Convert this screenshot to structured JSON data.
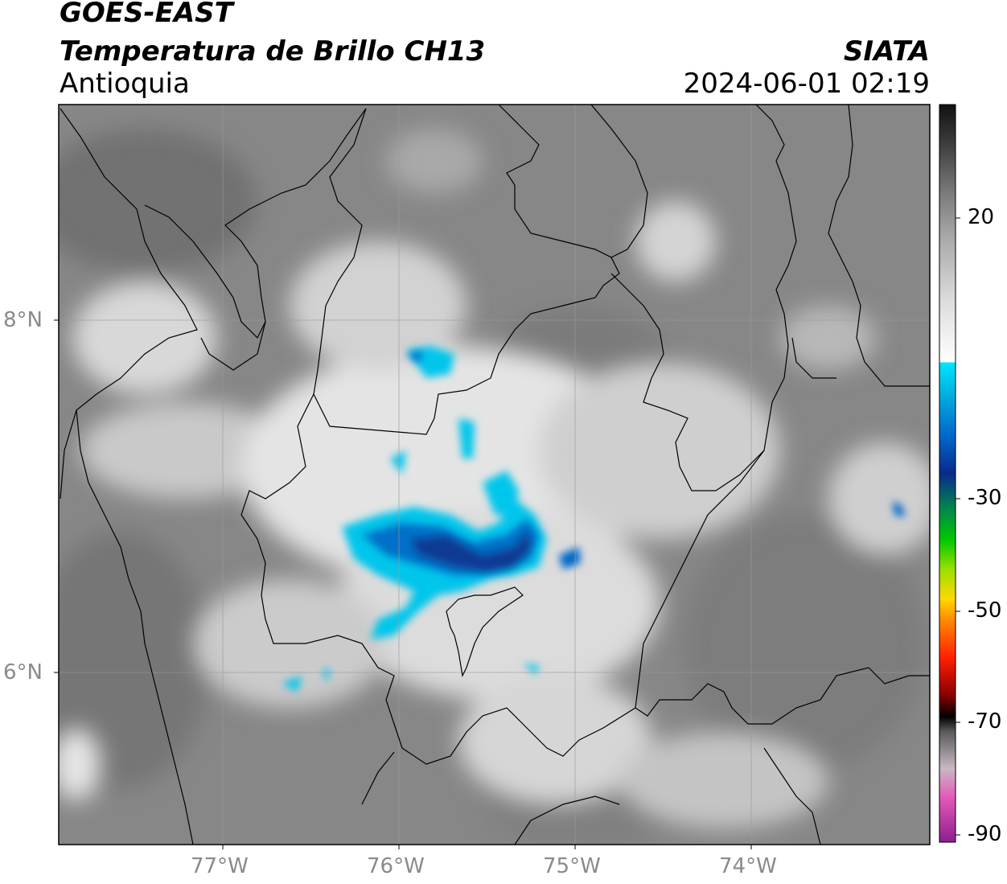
{
  "header": {
    "satellite": "GOES-EAST",
    "product": "Temperatura de Brillo CH13",
    "region": "Antioquia",
    "brand": "SIATA",
    "timestamp": "2024-06-01 02:19"
  },
  "map": {
    "lat_labels": [
      "8°N",
      "6°N"
    ],
    "lon_labels": [
      "77°W",
      "76°W",
      "75°W",
      "74°W"
    ],
    "grid": true,
    "background_color": "#8a8a8a",
    "border_color": "#000000"
  },
  "colorbar": {
    "tick_labels": [
      "20",
      "-30",
      "-50",
      "-70",
      "-90"
    ],
    "units_hint": "°C",
    "stops": [
      {
        "color": "#8c1f8c"
      },
      {
        "color": "#e458b8"
      },
      {
        "color": "#c8b8c4"
      },
      {
        "color": "#5a5a5a"
      },
      {
        "color": "#000000"
      },
      {
        "color": "#8b0000"
      },
      {
        "color": "#ff2000"
      },
      {
        "color": "#ff8800"
      },
      {
        "color": "#ffd800"
      },
      {
        "color": "#9be000"
      },
      {
        "color": "#00c800"
      },
      {
        "color": "#008a4a"
      },
      {
        "color": "#0a2a8a"
      },
      {
        "color": "#0066cc"
      },
      {
        "color": "#00b4e0"
      },
      {
        "color": "#00e5ff"
      },
      {
        "color": "#ffffff"
      },
      {
        "color": "#bdbdbd"
      },
      {
        "color": "#8e8e8e"
      },
      {
        "color": "#6b6b6b"
      },
      {
        "color": "#333333"
      },
      {
        "color": "#111111"
      }
    ]
  }
}
